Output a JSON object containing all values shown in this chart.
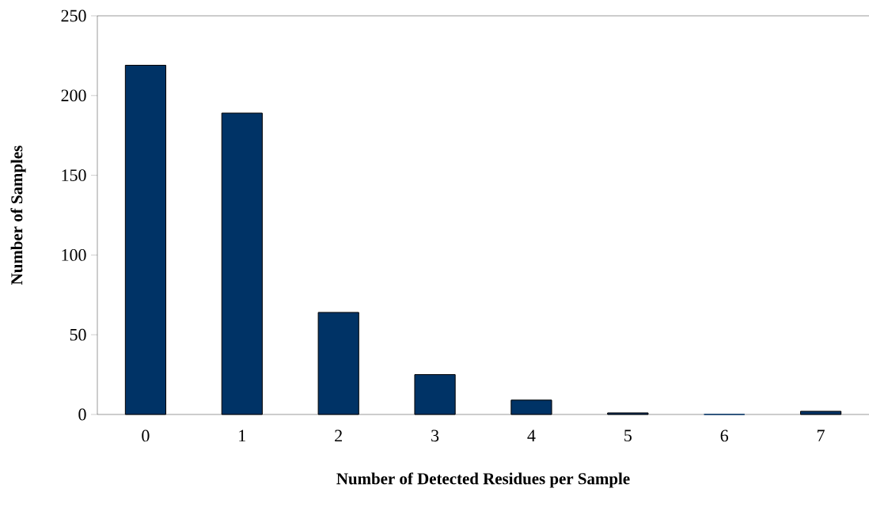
{
  "chart_data": {
    "type": "bar",
    "xlabel": "Number of Detected Residues per Sample",
    "ylabel": "Number of Samples",
    "categories": [
      "0",
      "1",
      "2",
      "3",
      "4",
      "5",
      "6",
      "7"
    ],
    "values": [
      219,
      189,
      64,
      25,
      9,
      1,
      0,
      2
    ],
    "color": "#003366",
    "ylim": [
      0,
      250
    ],
    "yticks": [
      0,
      50,
      100,
      150,
      200,
      250
    ],
    "grid": false
  }
}
